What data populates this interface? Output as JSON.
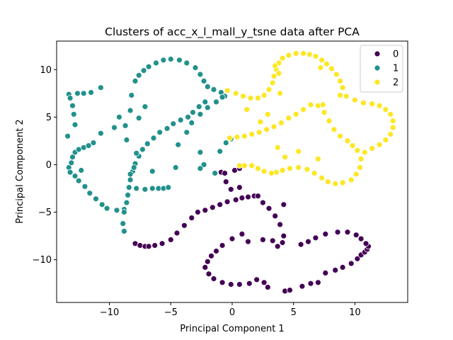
{
  "chart_data": {
    "type": "scatter",
    "title": "Clusters of acc_x_l_mall_y_tsne data after PCA",
    "xlabel": "Principal Component 1",
    "ylabel": "Principal Component 2",
    "xlim": [
      -14.3,
      14.3
    ],
    "ylim": [
      -14.5,
      13.0
    ],
    "xticks": [
      -10,
      -5,
      0,
      5,
      10
    ],
    "yticks": [
      -10,
      -5,
      0,
      5,
      10
    ],
    "xtick_labels": [
      "−10",
      "−5",
      "0",
      "5",
      "10"
    ],
    "ytick_labels": [
      "−10",
      "−5",
      "0",
      "5",
      "10"
    ],
    "grid": false,
    "legend_position": "top-right",
    "series": [
      {
        "name": "0",
        "color": "#440154",
        "points": [
          [
            -7.9,
            -8.3
          ],
          [
            -7.5,
            -8.5
          ],
          [
            -7.1,
            -8.6
          ],
          [
            -6.8,
            -8.6
          ],
          [
            -6.3,
            -8.5
          ],
          [
            -5.7,
            -8.3
          ],
          [
            -5.0,
            -7.9
          ],
          [
            -4.5,
            -7.2
          ],
          [
            -3.9,
            -6.4
          ],
          [
            -3.3,
            -5.6
          ],
          [
            -2.8,
            -5.0
          ],
          [
            -2.2,
            -4.8
          ],
          [
            -1.6,
            -4.5
          ],
          [
            -1.0,
            -4.2
          ],
          [
            -0.4,
            -3.9
          ],
          [
            0.3,
            -3.7
          ],
          [
            0.8,
            -3.5
          ],
          [
            1.3,
            -3.4
          ],
          [
            1.8,
            -3.3
          ],
          [
            2.1,
            -3.3
          ],
          [
            -0.9,
            -0.8
          ],
          [
            -0.6,
            -0.9
          ],
          [
            0.2,
            -0.6
          ],
          [
            0.6,
            -0.4
          ],
          [
            -0.5,
            -1.8
          ],
          [
            -0.1,
            -2.6
          ],
          [
            0.6,
            -2.4
          ],
          [
            2.5,
            -4.0
          ],
          [
            3.0,
            -4.6
          ],
          [
            3.5,
            -5.4
          ],
          [
            3.9,
            -6.3
          ],
          [
            4.2,
            -7.5
          ],
          [
            4.2,
            -4.2
          ],
          [
            3.3,
            -8.0
          ],
          [
            3.7,
            -8.6
          ],
          [
            4.1,
            -8.2
          ],
          [
            1.3,
            -8.1
          ],
          [
            2.5,
            -7.9
          ],
          [
            0.8,
            -7.3
          ],
          [
            0.0,
            -7.8
          ],
          [
            -0.8,
            -8.5
          ],
          [
            -1.3,
            -9.1
          ],
          [
            -1.7,
            -9.6
          ],
          [
            -2.0,
            -10.2
          ],
          [
            -2.2,
            -10.8
          ],
          [
            -1.9,
            -11.5
          ],
          [
            -1.5,
            -12.0
          ],
          [
            -0.8,
            -12.4
          ],
          [
            -0.1,
            -12.6
          ],
          [
            0.6,
            -12.6
          ],
          [
            1.4,
            -12.5
          ],
          [
            2.0,
            -12.1
          ],
          [
            2.6,
            -12.4
          ],
          [
            2.9,
            -12.9
          ],
          [
            4.3,
            -13.3
          ],
          [
            4.7,
            -13.2
          ],
          [
            5.7,
            -12.8
          ],
          [
            6.4,
            -12.5
          ],
          [
            7.0,
            -12.4
          ],
          [
            7.6,
            -11.4
          ],
          [
            8.4,
            -11.1
          ],
          [
            9.0,
            -10.8
          ],
          [
            9.7,
            -10.4
          ],
          [
            10.2,
            -9.9
          ],
          [
            10.5,
            -9.5
          ],
          [
            10.8,
            -9.2
          ],
          [
            11.0,
            -8.9
          ],
          [
            11.1,
            -8.6
          ],
          [
            10.9,
            -8.3
          ],
          [
            10.5,
            -7.8
          ],
          [
            10.1,
            -7.4
          ],
          [
            9.4,
            -7.1
          ],
          [
            8.6,
            -7.1
          ],
          [
            7.6,
            -7.3
          ],
          [
            6.8,
            -7.7
          ],
          [
            6.2,
            -8.1
          ],
          [
            5.6,
            -8.4
          ]
        ]
      },
      {
        "name": "1",
        "color": "#21918c",
        "points": [
          [
            -13.4,
            3.0
          ],
          [
            -13.3,
            7.4
          ],
          [
            -13.2,
            7.0
          ],
          [
            -13.0,
            6.2
          ],
          [
            -12.9,
            5.3
          ],
          [
            -12.8,
            4.2
          ],
          [
            -12.6,
            7.5
          ],
          [
            -12.1,
            7.5
          ],
          [
            -11.5,
            7.6
          ],
          [
            -10.7,
            8.1
          ],
          [
            -13.3,
            -0.3
          ],
          [
            -13.2,
            -0.8
          ],
          [
            -13.1,
            0.2
          ],
          [
            -13.0,
            0.8
          ],
          [
            -12.8,
            1.3
          ],
          [
            -12.5,
            1.6
          ],
          [
            -12.1,
            1.8
          ],
          [
            -11.7,
            2.0
          ],
          [
            -11.3,
            2.3
          ],
          [
            -10.7,
            3.3
          ],
          [
            -12.8,
            -1.2
          ],
          [
            -12.5,
            -1.7
          ],
          [
            -12.0,
            -2.3
          ],
          [
            -11.6,
            -3.0
          ],
          [
            -11.1,
            -3.6
          ],
          [
            -10.6,
            -4.2
          ],
          [
            -10.2,
            -4.6
          ],
          [
            -9.4,
            -4.8
          ],
          [
            -8.8,
            -4.7
          ],
          [
            -12.3,
            -0.6
          ],
          [
            -9.6,
            3.9
          ],
          [
            -9.2,
            5.0
          ],
          [
            -8.7,
            4.1
          ],
          [
            -8.6,
            2.6
          ],
          [
            -8.3,
            5.7
          ],
          [
            -8.2,
            7.3
          ],
          [
            -7.9,
            8.8
          ],
          [
            -7.6,
            9.4
          ],
          [
            -7.2,
            9.9
          ],
          [
            -6.8,
            10.3
          ],
          [
            -6.2,
            10.7
          ],
          [
            -5.6,
            11.0
          ],
          [
            -5.0,
            11.1
          ],
          [
            -4.3,
            11.0
          ],
          [
            -3.7,
            10.7
          ],
          [
            -3.0,
            10.2
          ],
          [
            -2.6,
            9.5
          ],
          [
            -2.3,
            8.8
          ],
          [
            -2.0,
            8.2
          ],
          [
            -1.5,
            7.9
          ],
          [
            -0.9,
            7.6
          ],
          [
            -0.6,
            7.2
          ],
          [
            -2.2,
            6.6
          ],
          [
            -2.7,
            6.1
          ],
          [
            -3.2,
            5.5
          ],
          [
            -3.6,
            5.0
          ],
          [
            -4.2,
            4.7
          ],
          [
            -4.8,
            4.3
          ],
          [
            -5.3,
            3.8
          ],
          [
            -5.9,
            3.4
          ],
          [
            -6.4,
            2.8
          ],
          [
            -6.9,
            2.2
          ],
          [
            -7.3,
            1.6
          ],
          [
            -7.6,
            0.9
          ],
          [
            -7.9,
            0.1
          ],
          [
            -8.1,
            -0.7
          ],
          [
            -8.3,
            -1.6
          ],
          [
            -8.4,
            -2.4
          ],
          [
            -8.5,
            -3.2
          ],
          [
            -8.6,
            -4.0
          ],
          [
            -8.8,
            -5.0
          ],
          [
            -8.9,
            -6.2
          ],
          [
            -8.8,
            -7.0
          ],
          [
            -7.1,
            -2.6
          ],
          [
            -6.5,
            -2.5
          ],
          [
            -6.0,
            -2.5
          ],
          [
            -5.6,
            -2.5
          ],
          [
            -5.2,
            -2.4
          ],
          [
            -4.6,
            -0.3
          ],
          [
            -4.4,
            2.1
          ],
          [
            -3.7,
            3.4
          ],
          [
            -3.3,
            4.4
          ],
          [
            -2.6,
            5.3
          ],
          [
            -2.0,
            6.0
          ],
          [
            -1.3,
            6.6
          ],
          [
            -0.8,
            7.1
          ],
          [
            -2.6,
            1.3
          ],
          [
            -2.3,
            0.0
          ],
          [
            -2.6,
            -0.4
          ],
          [
            -1.4,
            -0.9
          ],
          [
            -1.0,
            1.4
          ],
          [
            -0.5,
            2.3
          ],
          [
            -0.1,
            2.7
          ],
          [
            -7.8,
            1.2
          ],
          [
            -8.0,
            -0.3
          ],
          [
            -8.3,
            -1.0
          ],
          [
            -7.8,
            -2.5
          ],
          [
            -6.5,
            -0.7
          ],
          [
            -7.6,
            4.9
          ],
          [
            -7.1,
            6.1
          ]
        ]
      },
      {
        "name": "2",
        "color": "#fde725",
        "points": [
          [
            -0.4,
            7.8
          ],
          [
            0.3,
            7.5
          ],
          [
            0.9,
            7.2
          ],
          [
            1.5,
            7.0
          ],
          [
            2.1,
            7.0
          ],
          [
            2.6,
            7.3
          ],
          [
            3.0,
            7.9
          ],
          [
            3.3,
            8.6
          ],
          [
            3.4,
            9.3
          ],
          [
            3.6,
            10.0
          ],
          [
            3.8,
            10.7
          ],
          [
            4.1,
            11.2
          ],
          [
            4.6,
            11.5
          ],
          [
            5.2,
            11.7
          ],
          [
            5.8,
            11.7
          ],
          [
            6.3,
            11.6
          ],
          [
            6.8,
            11.4
          ],
          [
            7.3,
            11.0
          ],
          [
            7.7,
            10.6
          ],
          [
            8.1,
            10.1
          ],
          [
            8.5,
            9.5
          ],
          [
            8.8,
            8.8
          ],
          [
            9.0,
            8.1
          ],
          [
            8.8,
            7.3
          ],
          [
            9.3,
            7.2
          ],
          [
            10.0,
            6.8
          ],
          [
            10.7,
            6.5
          ],
          [
            11.4,
            6.4
          ],
          [
            12.0,
            6.2
          ],
          [
            12.5,
            5.8
          ],
          [
            12.9,
            5.3
          ],
          [
            13.1,
            4.6
          ],
          [
            13.1,
            3.9
          ],
          [
            12.9,
            3.2
          ],
          [
            12.5,
            2.6
          ],
          [
            12.0,
            2.1
          ],
          [
            11.4,
            1.7
          ],
          [
            10.8,
            1.3
          ],
          [
            10.5,
            0.6
          ],
          [
            10.4,
            -0.3
          ],
          [
            10.1,
            -1.0
          ],
          [
            9.7,
            -1.6
          ],
          [
            9.0,
            -1.9
          ],
          [
            8.4,
            -2.0
          ],
          [
            7.8,
            -1.8
          ],
          [
            7.3,
            -1.4
          ],
          [
            6.7,
            -0.9
          ],
          [
            6.1,
            -0.5
          ],
          [
            5.4,
            -0.3
          ],
          [
            4.7,
            -0.4
          ],
          [
            4.1,
            -0.6
          ],
          [
            3.6,
            -0.8
          ],
          [
            3.2,
            -0.9
          ],
          [
            2.6,
            -0.7
          ],
          [
            2.1,
            -0.4
          ],
          [
            1.6,
            -0.1
          ],
          [
            1.0,
            -0.1
          ],
          [
            0.6,
            -0.1
          ],
          [
            -0.2,
            2.8
          ],
          [
            0.4,
            2.9
          ],
          [
            1.0,
            3.0
          ],
          [
            1.6,
            3.2
          ],
          [
            2.2,
            3.4
          ],
          [
            2.8,
            3.7
          ],
          [
            3.4,
            4.0
          ],
          [
            4.0,
            4.4
          ],
          [
            4.6,
            4.9
          ],
          [
            5.2,
            5.3
          ],
          [
            5.8,
            5.8
          ],
          [
            6.4,
            6.3
          ],
          [
            7.0,
            6.2
          ],
          [
            7.5,
            5.5
          ],
          [
            7.9,
            4.6
          ],
          [
            8.3,
            3.7
          ],
          [
            8.8,
            3.0
          ],
          [
            9.4,
            2.5
          ],
          [
            9.8,
            2.0
          ],
          [
            10.2,
            1.5
          ],
          [
            5.4,
            1.4
          ],
          [
            7.0,
            0.6
          ],
          [
            4.3,
            0.8
          ],
          [
            7.4,
            6.3
          ],
          [
            2.3,
            4.5
          ],
          [
            1.2,
            5.8
          ],
          [
            3.9,
            7.5
          ],
          [
            2.9,
            5.3
          ],
          [
            3.7,
            1.8
          ],
          [
            3.8,
            9.6
          ],
          [
            3.5,
            10.4
          ],
          [
            7.2,
            10.2
          ]
        ]
      }
    ]
  }
}
